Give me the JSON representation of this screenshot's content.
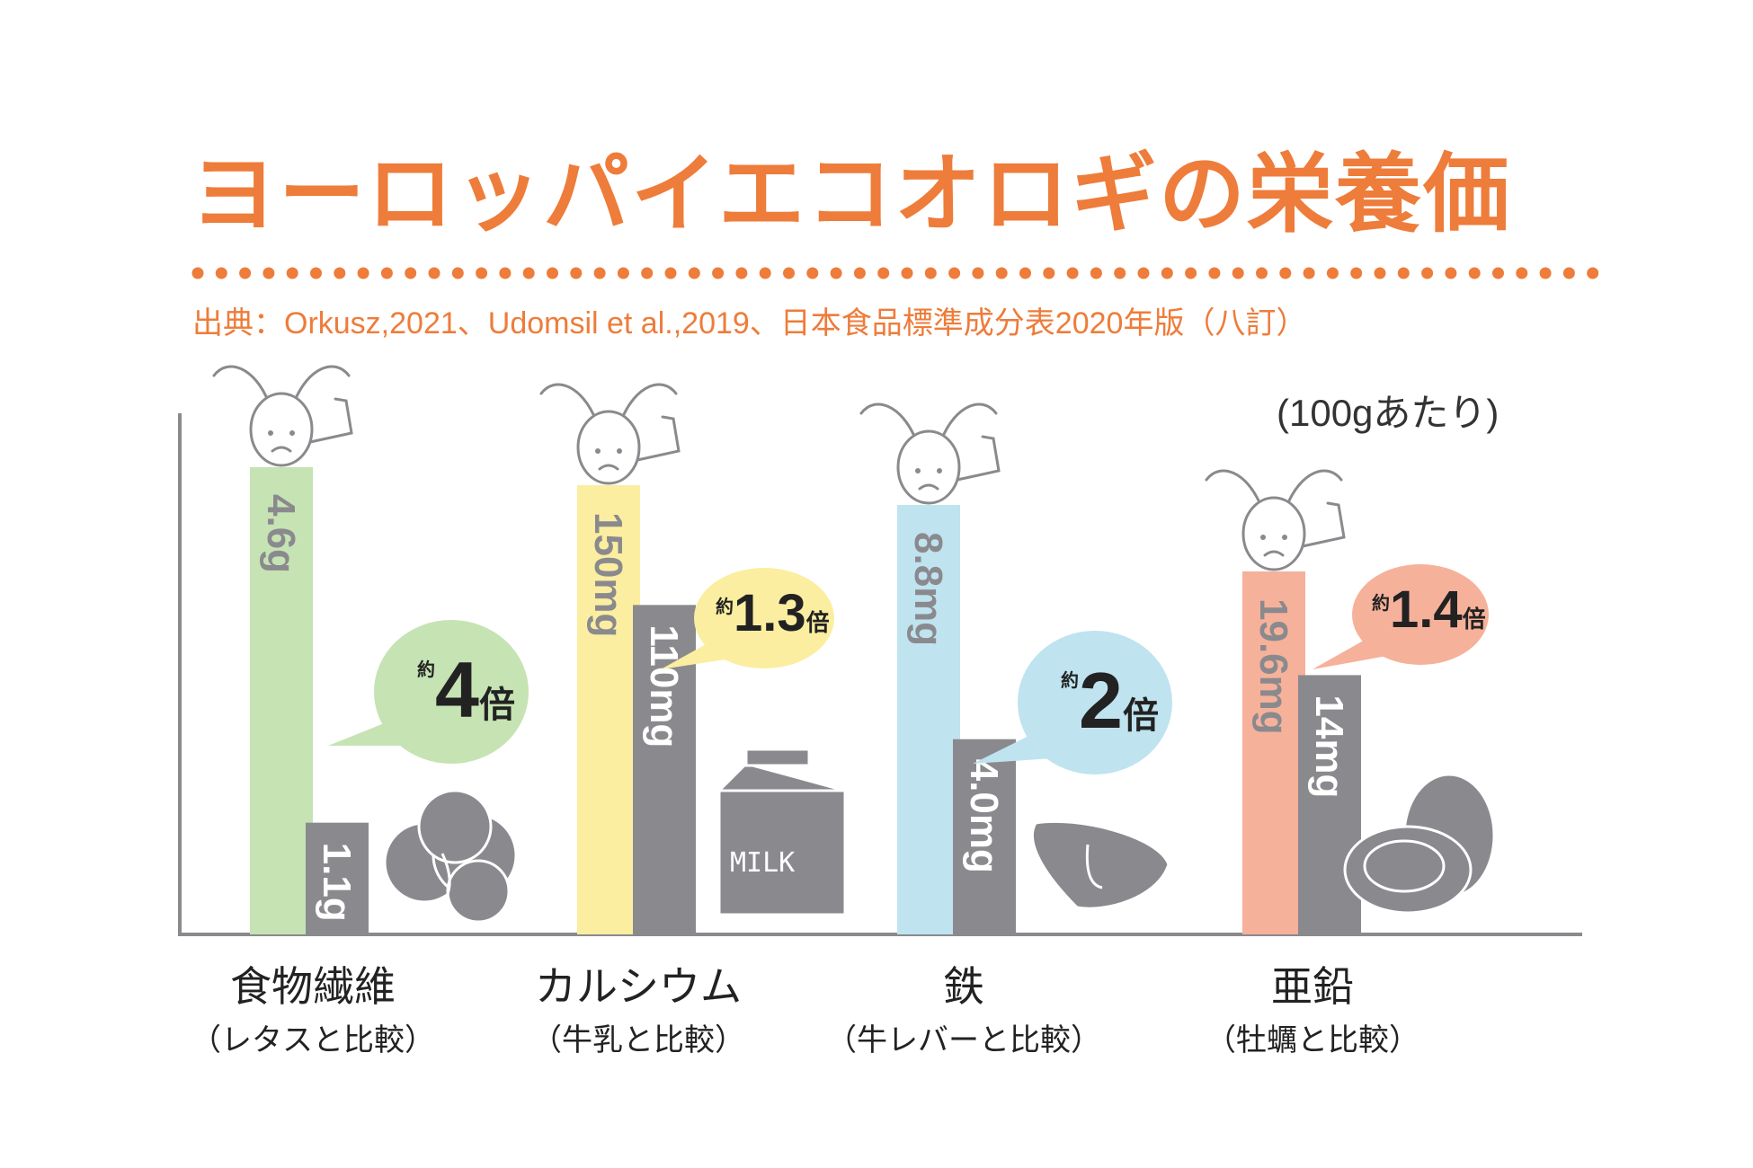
{
  "title": "ヨーロッパイエコオロギの栄養価",
  "source": "出典：Orkusz,2021、Udomsil et al.,2019、日本食品標準成分表2020年版（八訂）",
  "unit_note": "(100gあたり)",
  "colors": {
    "title": "#ee7c3a",
    "comparison_bar": "#8a8a8e",
    "axis": "#8a8a8e"
  },
  "chart_data": {
    "type": "bar",
    "title": "ヨーロッパイエコオロギの栄養価",
    "ylabel": "",
    "xlabel": "",
    "categories": [
      {
        "label": "食物繊維",
        "sublabel": "（レタスと比較）",
        "cricket_value": 4.6,
        "cricket_label": "4.6g",
        "comparison_value": 1.1,
        "comparison_label": "1.1g",
        "unit": "g",
        "ratio_prefix": "約",
        "ratio_value": "4",
        "ratio_suffix": "倍",
        "cricket_color": "#c6e3b4",
        "bubble_color": "#c6e3b4",
        "comparison_item": "lettuce-icon"
      },
      {
        "label": "カルシウム",
        "sublabel": "（牛乳と比較）",
        "cricket_value": 150,
        "cricket_label": "150mg",
        "comparison_value": 110,
        "comparison_label": "110mg",
        "unit": "mg",
        "ratio_prefix": "約",
        "ratio_value": "1.3",
        "ratio_suffix": "倍",
        "cricket_color": "#fbeea0",
        "bubble_color": "#fbeea0",
        "comparison_item": "milk-carton-icon",
        "comparison_item_text": "MILK"
      },
      {
        "label": "鉄",
        "sublabel": "（牛レバーと比較）",
        "cricket_value": 8.8,
        "cricket_label": "8.8mg",
        "comparison_value": 4.0,
        "comparison_label": "4.0mg",
        "unit": "mg",
        "ratio_prefix": "約",
        "ratio_value": "2",
        "ratio_suffix": "倍",
        "cricket_color": "#bfe3ef",
        "bubble_color": "#bfe3ef",
        "comparison_item": "beef-liver-icon"
      },
      {
        "label": "亜鉛",
        "sublabel": "（牡蠣と比較）",
        "cricket_value": 19.6,
        "cricket_label": "19.6mg",
        "comparison_value": 14,
        "comparison_label": "14mg",
        "unit": "mg",
        "ratio_prefix": "約",
        "ratio_value": "1.4",
        "ratio_suffix": "倍",
        "cricket_color": "#f6b19a",
        "bubble_color": "#f6b19a",
        "comparison_item": "oyster-icon"
      }
    ]
  }
}
